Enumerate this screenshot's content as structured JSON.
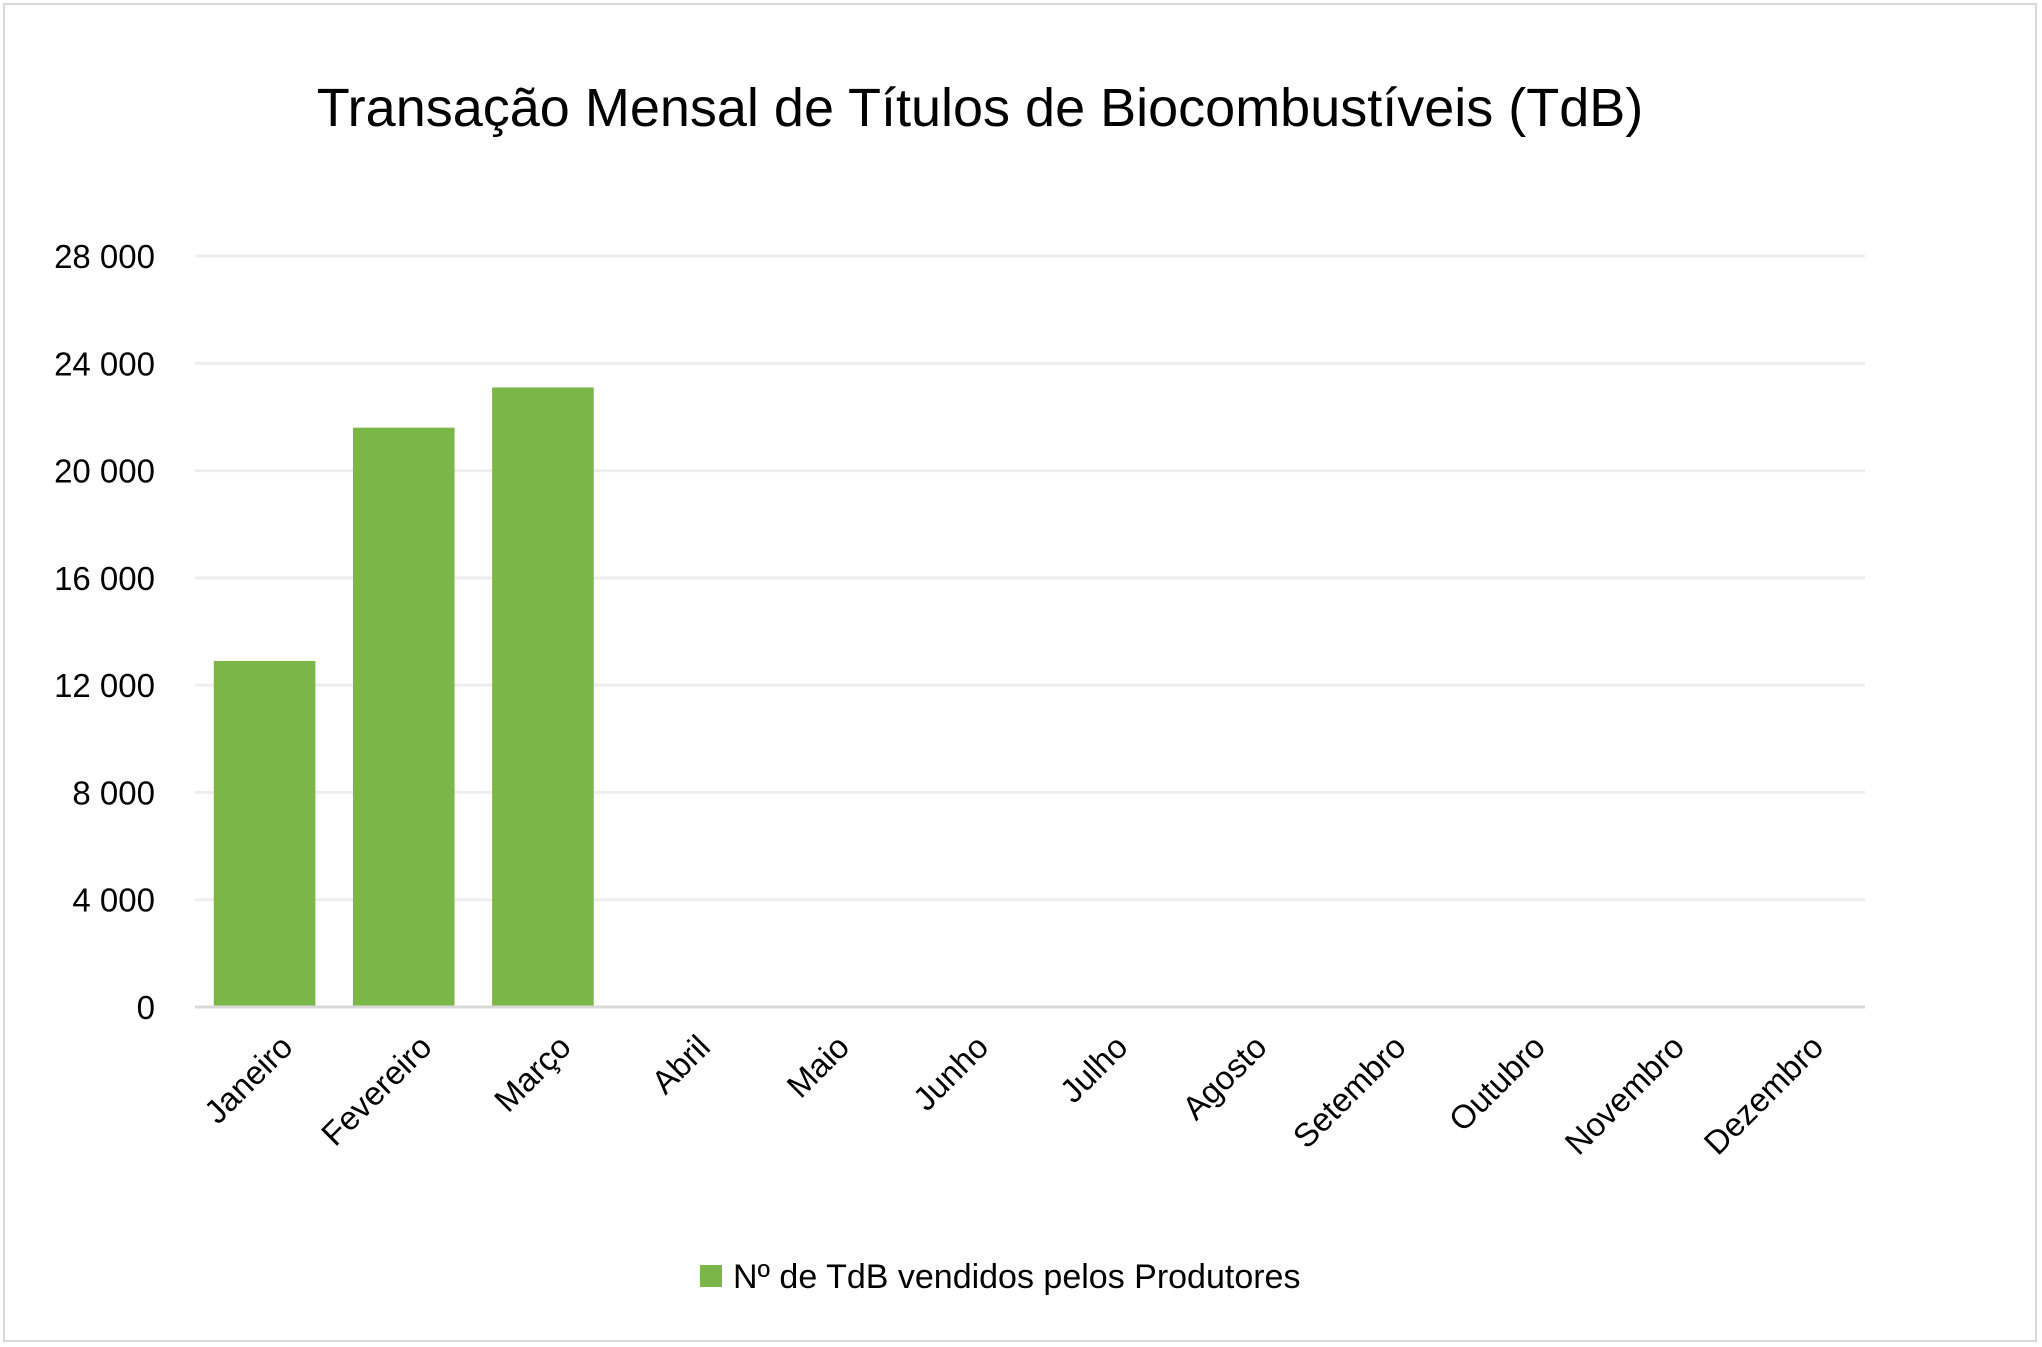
{
  "chart_data": {
    "type": "bar",
    "title": "Transação Mensal de Títulos de Biocombustíveis (TdB)",
    "xlabel": "",
    "ylabel": "",
    "categories": [
      "Janeiro",
      "Fevereiro",
      "Março",
      "Abril",
      "Maio",
      "Junho",
      "Julho",
      "Agosto",
      "Setembro",
      "Outubro",
      "Novembro",
      "Dezembro"
    ],
    "series": [
      {
        "name": "Nº de TdB vendidos pelos Produtores",
        "color": "#7ab648",
        "values": [
          12900,
          21600,
          23100,
          null,
          null,
          null,
          null,
          null,
          null,
          null,
          null,
          null
        ]
      }
    ],
    "ylim": [
      0,
      28000
    ],
    "yticks": [
      0,
      4000,
      8000,
      12000,
      16000,
      20000,
      24000,
      28000
    ],
    "ytick_labels": [
      "0",
      "4 000",
      "8 000",
      "12 000",
      "16 000",
      "20 000",
      "24 000",
      "28 000"
    ],
    "grid": true,
    "legend_position": "bottom"
  }
}
